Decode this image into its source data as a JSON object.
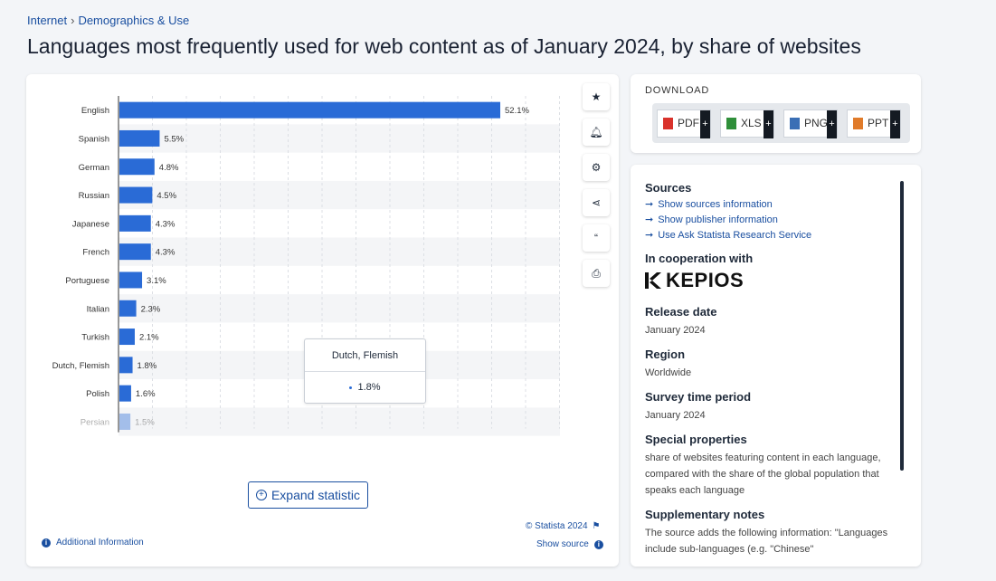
{
  "breadcrumb": {
    "items": [
      "Internet",
      "Demographics & Use"
    ],
    "separator": "›"
  },
  "title": "Languages most frequently used for web content as of January 2024, by share of websites",
  "colors": {
    "bar": "#2a6bd6",
    "link": "#1a4fa0",
    "stripe": "#f4f5f7",
    "grid": "#dcdfe4"
  },
  "chart_data": {
    "type": "bar",
    "orientation": "horizontal",
    "categories": [
      "English",
      "Spanish",
      "German",
      "Russian",
      "Japanese",
      "French",
      "Portuguese",
      "Italian",
      "Turkish",
      "Dutch, Flemish",
      "Polish",
      "Persian"
    ],
    "values": [
      52.1,
      5.5,
      4.8,
      4.5,
      4.3,
      4.3,
      3.1,
      2.3,
      2.1,
      1.8,
      1.6,
      1.5
    ],
    "value_labels": [
      "52.1%",
      "5.5%",
      "4.8%",
      "4.5%",
      "4.3%",
      "4.3%",
      "3.1%",
      "2.3%",
      "2.1%",
      "1.8%",
      "1.6%",
      "1.5%"
    ],
    "xlim": [
      0,
      52.1
    ],
    "grid": true,
    "title": "",
    "xlabel": "",
    "ylabel": ""
  },
  "tooltip": {
    "category": "Dutch, Flemish",
    "value": "1.8%"
  },
  "tools": [
    {
      "name": "favorite",
      "icon": "star-icon",
      "glyph": "★"
    },
    {
      "name": "notify",
      "icon": "bell-icon",
      "glyph": "🔔︎"
    },
    {
      "name": "settings",
      "icon": "gear-icon",
      "glyph": "⚙"
    },
    {
      "name": "share",
      "icon": "share-icon",
      "glyph": "⋖"
    },
    {
      "name": "cite",
      "icon": "quote-icon",
      "glyph": "“"
    },
    {
      "name": "print",
      "icon": "printer-icon",
      "glyph": "⎙"
    }
  ],
  "expand_label": "Expand statistic",
  "additional_info": "Additional Information",
  "copyright": "© Statista 2024",
  "show_source": "Show source",
  "download": {
    "title": "DOWNLOAD",
    "buttons": [
      {
        "label": "PDF",
        "color": "#d9322b"
      },
      {
        "label": "XLS",
        "color": "#2f8f3a"
      },
      {
        "label": "PNG",
        "color": "#3a6fb5"
      },
      {
        "label": "PPT",
        "color": "#e07b2a"
      }
    ],
    "plus": "+"
  },
  "info": {
    "sources_title": "Sources",
    "source_links": [
      "Show sources information",
      "Show publisher information",
      "Use Ask Statista Research Service"
    ],
    "cooperation_title": "In cooperation with",
    "cooperation_logo_text": "KEPIOS",
    "release_title": "Release date",
    "release_value": "January 2024",
    "region_title": "Region",
    "region_value": "Worldwide",
    "survey_title": "Survey time period",
    "survey_value": "January 2024",
    "special_title": "Special properties",
    "special_value": "share of websites featuring content in each language, compared with the share of the global population that speaks each language",
    "supp_title": "Supplementary notes",
    "supp_value": "The source adds the following information: \"Languages include sub-languages (e.g. \"Chinese\""
  }
}
